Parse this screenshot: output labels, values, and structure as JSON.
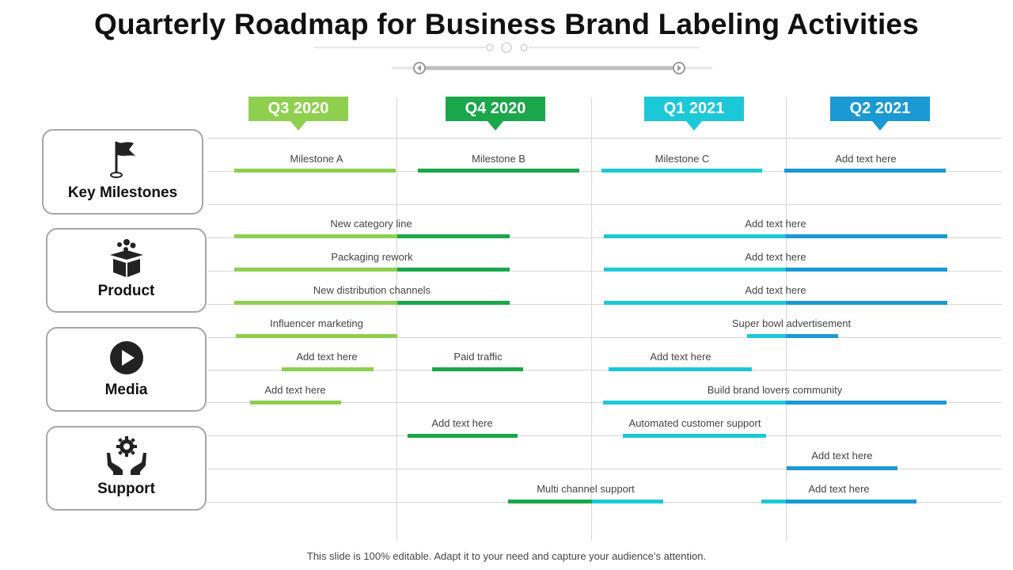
{
  "title": "Quarterly Roadmap for Business Brand Labeling Activities",
  "footer": "This slide is 100% editable. Adapt it to your need and capture your audience’s attention.",
  "colors": {
    "q3": "#8fcf4f",
    "q4": "#1aa64a",
    "q1": "#1cc8d8",
    "q2": "#1a99d3",
    "category_border": "#a6a6a6",
    "grid": "#d6d6d6"
  },
  "quarters": [
    {
      "label": "Q3 2020",
      "color": "#8fcf4f"
    },
    {
      "label": "Q4 2020",
      "color": "#1aa64a"
    },
    {
      "label": "Q1 2021",
      "color": "#1cc8d8"
    },
    {
      "label": "Q2 2021",
      "color": "#1a99d3"
    }
  ],
  "categories": [
    {
      "label": "Key Milestones",
      "icon": "flag-icon"
    },
    {
      "label": "Product",
      "icon": "box-icon"
    },
    {
      "label": "Media",
      "icon": "play-icon"
    },
    {
      "label": "Support",
      "icon": "gear-hands-icon"
    }
  ],
  "tasks": [
    {
      "label": "Milestone A",
      "category": "Key Milestones"
    },
    {
      "label": "Milestone B",
      "category": "Key Milestones"
    },
    {
      "label": "Milestone C",
      "category": "Key Milestones"
    },
    {
      "label": "Add text here",
      "category": "Key Milestones"
    },
    {
      "label": "New category line",
      "category": "Product"
    },
    {
      "label": "Add text here",
      "category": "Product"
    },
    {
      "label": "Packaging rework",
      "category": "Product"
    },
    {
      "label": "Add text here",
      "category": "Product"
    },
    {
      "label": "New distribution channels",
      "category": "Product"
    },
    {
      "label": "Add text here",
      "category": "Product"
    },
    {
      "label": "Influencer marketing",
      "category": "Media"
    },
    {
      "label": "Super bowl advertisement",
      "category": "Media"
    },
    {
      "label": "Add text here",
      "category": "Media"
    },
    {
      "label": "Paid traffic",
      "category": "Media"
    },
    {
      "label": "Add text here",
      "category": "Media"
    },
    {
      "label": "Add text here",
      "category": "Media"
    },
    {
      "label": "Build brand lovers community",
      "category": "Media"
    },
    {
      "label": "Add text here",
      "category": "Support"
    },
    {
      "label": "Automated customer support",
      "category": "Support"
    },
    {
      "label": "Add text here",
      "category": "Support"
    },
    {
      "label": "Multi channel support",
      "category": "Support"
    },
    {
      "label": "Add text here",
      "category": "Support"
    }
  ]
}
